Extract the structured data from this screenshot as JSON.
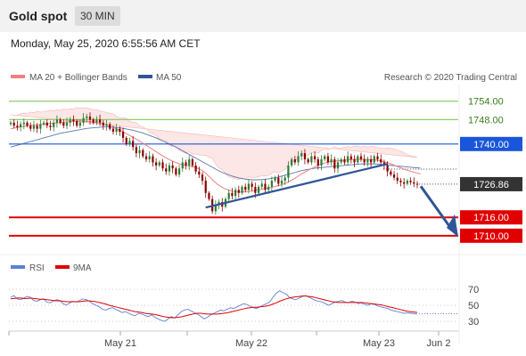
{
  "header": {
    "symbol": "Gold spot",
    "timeframe": "30 MIN"
  },
  "datetime": "Monday, May 25, 2020 6:55:56 AM CET",
  "legend": {
    "ma20_bb": "MA 20 + Bollinger Bands",
    "ma50": "MA 50",
    "copyright": "Research © 2020 Trading Central",
    "rsi": "RSI",
    "ma9": "9MA"
  },
  "colors": {
    "ma20_bb": "#f08080",
    "ma50": "#2f5597",
    "candle_up": "#2e7d32",
    "candle_down": "#8b0000",
    "resistance": "#8fce6e",
    "pivot": "#1a56db",
    "support": "#e00000",
    "trend": "#2f5597",
    "rsi": "#5b7fd6",
    "rsi_ma": "#e00000"
  },
  "chart_data": [
    {
      "type": "candlestick",
      "title": "Gold spot",
      "x_tick_labels": [
        "May 21",
        "May 22",
        "May 23",
        "Jun 2"
      ],
      "ylim": [
        1705,
        1758
      ],
      "levels": [
        {
          "value": 1754.0,
          "label": "1754.00",
          "kind": "resistance"
        },
        {
          "value": 1748.0,
          "label": "1748.00",
          "kind": "resistance"
        },
        {
          "value": 1740.0,
          "label": "1740.00",
          "kind": "pivot"
        },
        {
          "value": 1726.86,
          "label": "1726.86",
          "kind": "last"
        },
        {
          "value": 1716.0,
          "label": "1716.00",
          "kind": "support"
        },
        {
          "value": 1710.0,
          "label": "1710.00",
          "kind": "support"
        }
      ],
      "closes": [
        1747,
        1746,
        1745.5,
        1746.5,
        1747,
        1746,
        1745,
        1746,
        1745,
        1746.5,
        1747,
        1746,
        1745.5,
        1747,
        1748,
        1747,
        1746,
        1747,
        1748,
        1747.5,
        1746,
        1747,
        1748.5,
        1749,
        1748,
        1747,
        1748,
        1747,
        1746,
        1746.5,
        1745,
        1744,
        1745,
        1744,
        1742,
        1740,
        1741,
        1739,
        1737,
        1738,
        1736,
        1735,
        1736,
        1734,
        1733,
        1734,
        1732,
        1731,
        1733,
        1732,
        1730,
        1732,
        1734,
        1733,
        1735,
        1733,
        1731,
        1730,
        1728,
        1724,
        1722,
        1718,
        1720,
        1721,
        1719.5,
        1722,
        1724,
        1723,
        1725,
        1724,
        1726,
        1725,
        1727,
        1726,
        1724,
        1726,
        1727,
        1725,
        1726,
        1728,
        1729,
        1727,
        1728,
        1729,
        1733,
        1735,
        1734,
        1736,
        1737,
        1735,
        1734,
        1736,
        1735,
        1733,
        1735,
        1736,
        1734,
        1735,
        1732,
        1734,
        1735,
        1734,
        1736,
        1735,
        1734,
        1736,
        1735,
        1734,
        1735,
        1734,
        1736,
        1735,
        1734,
        1733,
        1731,
        1730,
        1729,
        1728,
        1727.5,
        1727,
        1728,
        1727.5,
        1727,
        1726.86
      ],
      "ma20": [
        1745,
        1745.2,
        1745.4,
        1745.6,
        1745.8,
        1746,
        1746.1,
        1746.2,
        1746.3,
        1746.4,
        1746.5,
        1746.6,
        1746.7,
        1746.8,
        1746.9,
        1747,
        1747.1,
        1747.2,
        1747.3,
        1747.4,
        1747.5,
        1747.5,
        1747.5,
        1747.4,
        1747.3,
        1747.2,
        1747,
        1746.8,
        1746.5,
        1746.2,
        1745.8,
        1745.4,
        1745,
        1744.5,
        1744,
        1743.4,
        1742.8,
        1742.2,
        1741.6,
        1741,
        1740.3,
        1739.6,
        1738.9,
        1738.2,
        1737.5,
        1736.8,
        1736.1,
        1735.5,
        1734.9,
        1734.4,
        1733.9,
        1733.5,
        1733.2,
        1733,
        1732.8,
        1732.6,
        1732.3,
        1731.9,
        1731.3,
        1730.4,
        1729.4,
        1728.3,
        1727.3,
        1726.5,
        1725.8,
        1725.3,
        1724.9,
        1724.6,
        1724.4,
        1724.3,
        1724.3,
        1724.4,
        1724.5,
        1724.6,
        1724.8,
        1725,
        1725.2,
        1725.4,
        1725.6,
        1725.8,
        1726.1,
        1726.4,
        1726.7,
        1727.1,
        1727.6,
        1728.2,
        1728.8,
        1729.5,
        1730.2,
        1730.8,
        1731.4,
        1732,
        1732.5,
        1733,
        1733.4,
        1733.8,
        1734.1,
        1734.3,
        1734.4,
        1734.5,
        1734.6,
        1734.7,
        1734.8,
        1734.9,
        1735,
        1735,
        1735,
        1735,
        1735,
        1734.9,
        1734.8,
        1734.7,
        1734.5,
        1734.2,
        1733.9,
        1733.5,
        1733.1,
        1732.6,
        1732.2,
        1731.8,
        1731.4,
        1731.1,
        1730.8,
        1730.5,
        1730.2
      ],
      "ma50": [
        1739,
        1739.3,
        1739.6,
        1739.9,
        1740.2,
        1740.5,
        1740.8,
        1741.1,
        1741.4,
        1741.7,
        1742,
        1742.3,
        1742.6,
        1742.9,
        1743.2,
        1743.5,
        1743.7,
        1743.9,
        1744.1,
        1744.3,
        1744.5,
        1744.7,
        1744.9,
        1745.1,
        1745.2,
        1745.3,
        1745.4,
        1745.5,
        1745.6,
        1745.6,
        1745.6,
        1745.5,
        1745.4,
        1745.3,
        1745.1,
        1744.9,
        1744.7,
        1744.5,
        1744.2,
        1743.9,
        1743.6,
        1743.2,
        1742.8,
        1742.4,
        1742,
        1741.5,
        1741,
        1740.5,
        1740,
        1739.5,
        1739,
        1738.4,
        1737.8,
        1737.2,
        1736.6,
        1736,
        1735.4,
        1734.8,
        1734.2,
        1733.6,
        1733,
        1732.4,
        1731.8,
        1731.2,
        1730.7,
        1730.3,
        1729.9,
        1729.5,
        1729.2,
        1728.9,
        1728.7,
        1728.5,
        1728.4,
        1728.3,
        1728.3,
        1728.3,
        1728.4,
        1728.5,
        1728.6,
        1728.8,
        1729,
        1729.2,
        1729.5,
        1729.8,
        1730.1,
        1730.4,
        1730.7,
        1731,
        1731.3,
        1731.5,
        1731.7,
        1731.9,
        1732.1,
        1732.2,
        1732.3,
        1732.4,
        1732.5,
        1732.6,
        1732.7,
        1732.8,
        1732.9,
        1733,
        1733.1,
        1733.2,
        1733.3,
        1733.4,
        1733.5,
        1733.5,
        1733.5,
        1733.5,
        1733.5,
        1733.4,
        1733.3,
        1733.2,
        1733.1,
        1733,
        1732.9,
        1732.8,
        1732.7,
        1732.6,
        1732.5,
        1732.4,
        1732.3,
        1732.2,
        1732.1
      ]
    },
    {
      "type": "line",
      "title": "RSI",
      "ylim": [
        20,
        80
      ],
      "y_ticks": [
        70,
        50,
        30
      ],
      "series": [
        {
          "name": "RSI",
          "values": [
            60,
            62,
            58,
            57,
            59,
            61,
            60,
            56,
            55,
            57,
            58,
            54,
            53,
            55,
            57,
            56,
            52,
            50,
            53,
            55,
            54,
            56,
            58,
            57,
            55,
            52,
            50,
            48,
            45,
            44,
            46,
            47,
            45,
            43,
            41,
            42,
            40,
            38,
            37,
            40,
            39,
            37,
            36,
            38,
            35,
            33,
            31,
            30,
            33,
            36,
            34,
            38,
            42,
            44,
            45,
            43,
            41,
            39,
            36,
            33,
            35,
            38,
            40,
            42,
            44,
            43,
            45,
            47,
            46,
            48,
            50,
            52,
            51,
            49,
            47,
            46,
            48,
            50,
            52,
            54,
            60,
            65,
            68,
            66,
            64,
            60,
            58,
            57,
            59,
            61,
            62,
            60,
            58,
            56,
            55,
            54,
            52,
            50,
            52,
            54,
            55,
            56,
            54,
            53,
            55,
            54,
            52,
            53,
            51,
            50,
            52,
            51,
            49,
            48,
            47,
            46,
            44,
            43,
            42,
            41,
            40,
            40.5,
            40,
            39.5,
            39
          ]
        },
        {
          "name": "9MA",
          "values": [
            58,
            58.5,
            59,
            59,
            58.5,
            58.5,
            59,
            58.5,
            58,
            57.5,
            57.5,
            57,
            56.5,
            56,
            55.5,
            55.5,
            55,
            54.5,
            54.5,
            54.5,
            54.5,
            54.5,
            55,
            55.5,
            55.5,
            55,
            54.5,
            53.5,
            52.5,
            51.5,
            50,
            49,
            48,
            47,
            46,
            45,
            44,
            43,
            42,
            41.5,
            41,
            40,
            39.5,
            39,
            38.5,
            37.5,
            36.5,
            35.5,
            35,
            34.5,
            34.5,
            35,
            35.5,
            36.5,
            37.5,
            38.5,
            39.5,
            40,
            40,
            39.5,
            39,
            39,
            39,
            39,
            39.5,
            40,
            40.5,
            41.5,
            42.5,
            43.5,
            44.5,
            45.5,
            46.5,
            47,
            47.5,
            47.5,
            48,
            48.5,
            49,
            50,
            51.5,
            53,
            55,
            56.5,
            58,
            59,
            60,
            60.5,
            61,
            61.5,
            61.5,
            61,
            60.5,
            59.5,
            58.5,
            57.5,
            56.5,
            55.5,
            54.5,
            54,
            53.5,
            53.5,
            53.5,
            53.5,
            53.5,
            53.5,
            53.5,
            53.5,
            53,
            52.5,
            52,
            51.5,
            51,
            50.5,
            49.5,
            48.5,
            47.5,
            46.5,
            45.5,
            44.5,
            43.5,
            42.5,
            42,
            41.5,
            41
          ]
        }
      ]
    }
  ]
}
